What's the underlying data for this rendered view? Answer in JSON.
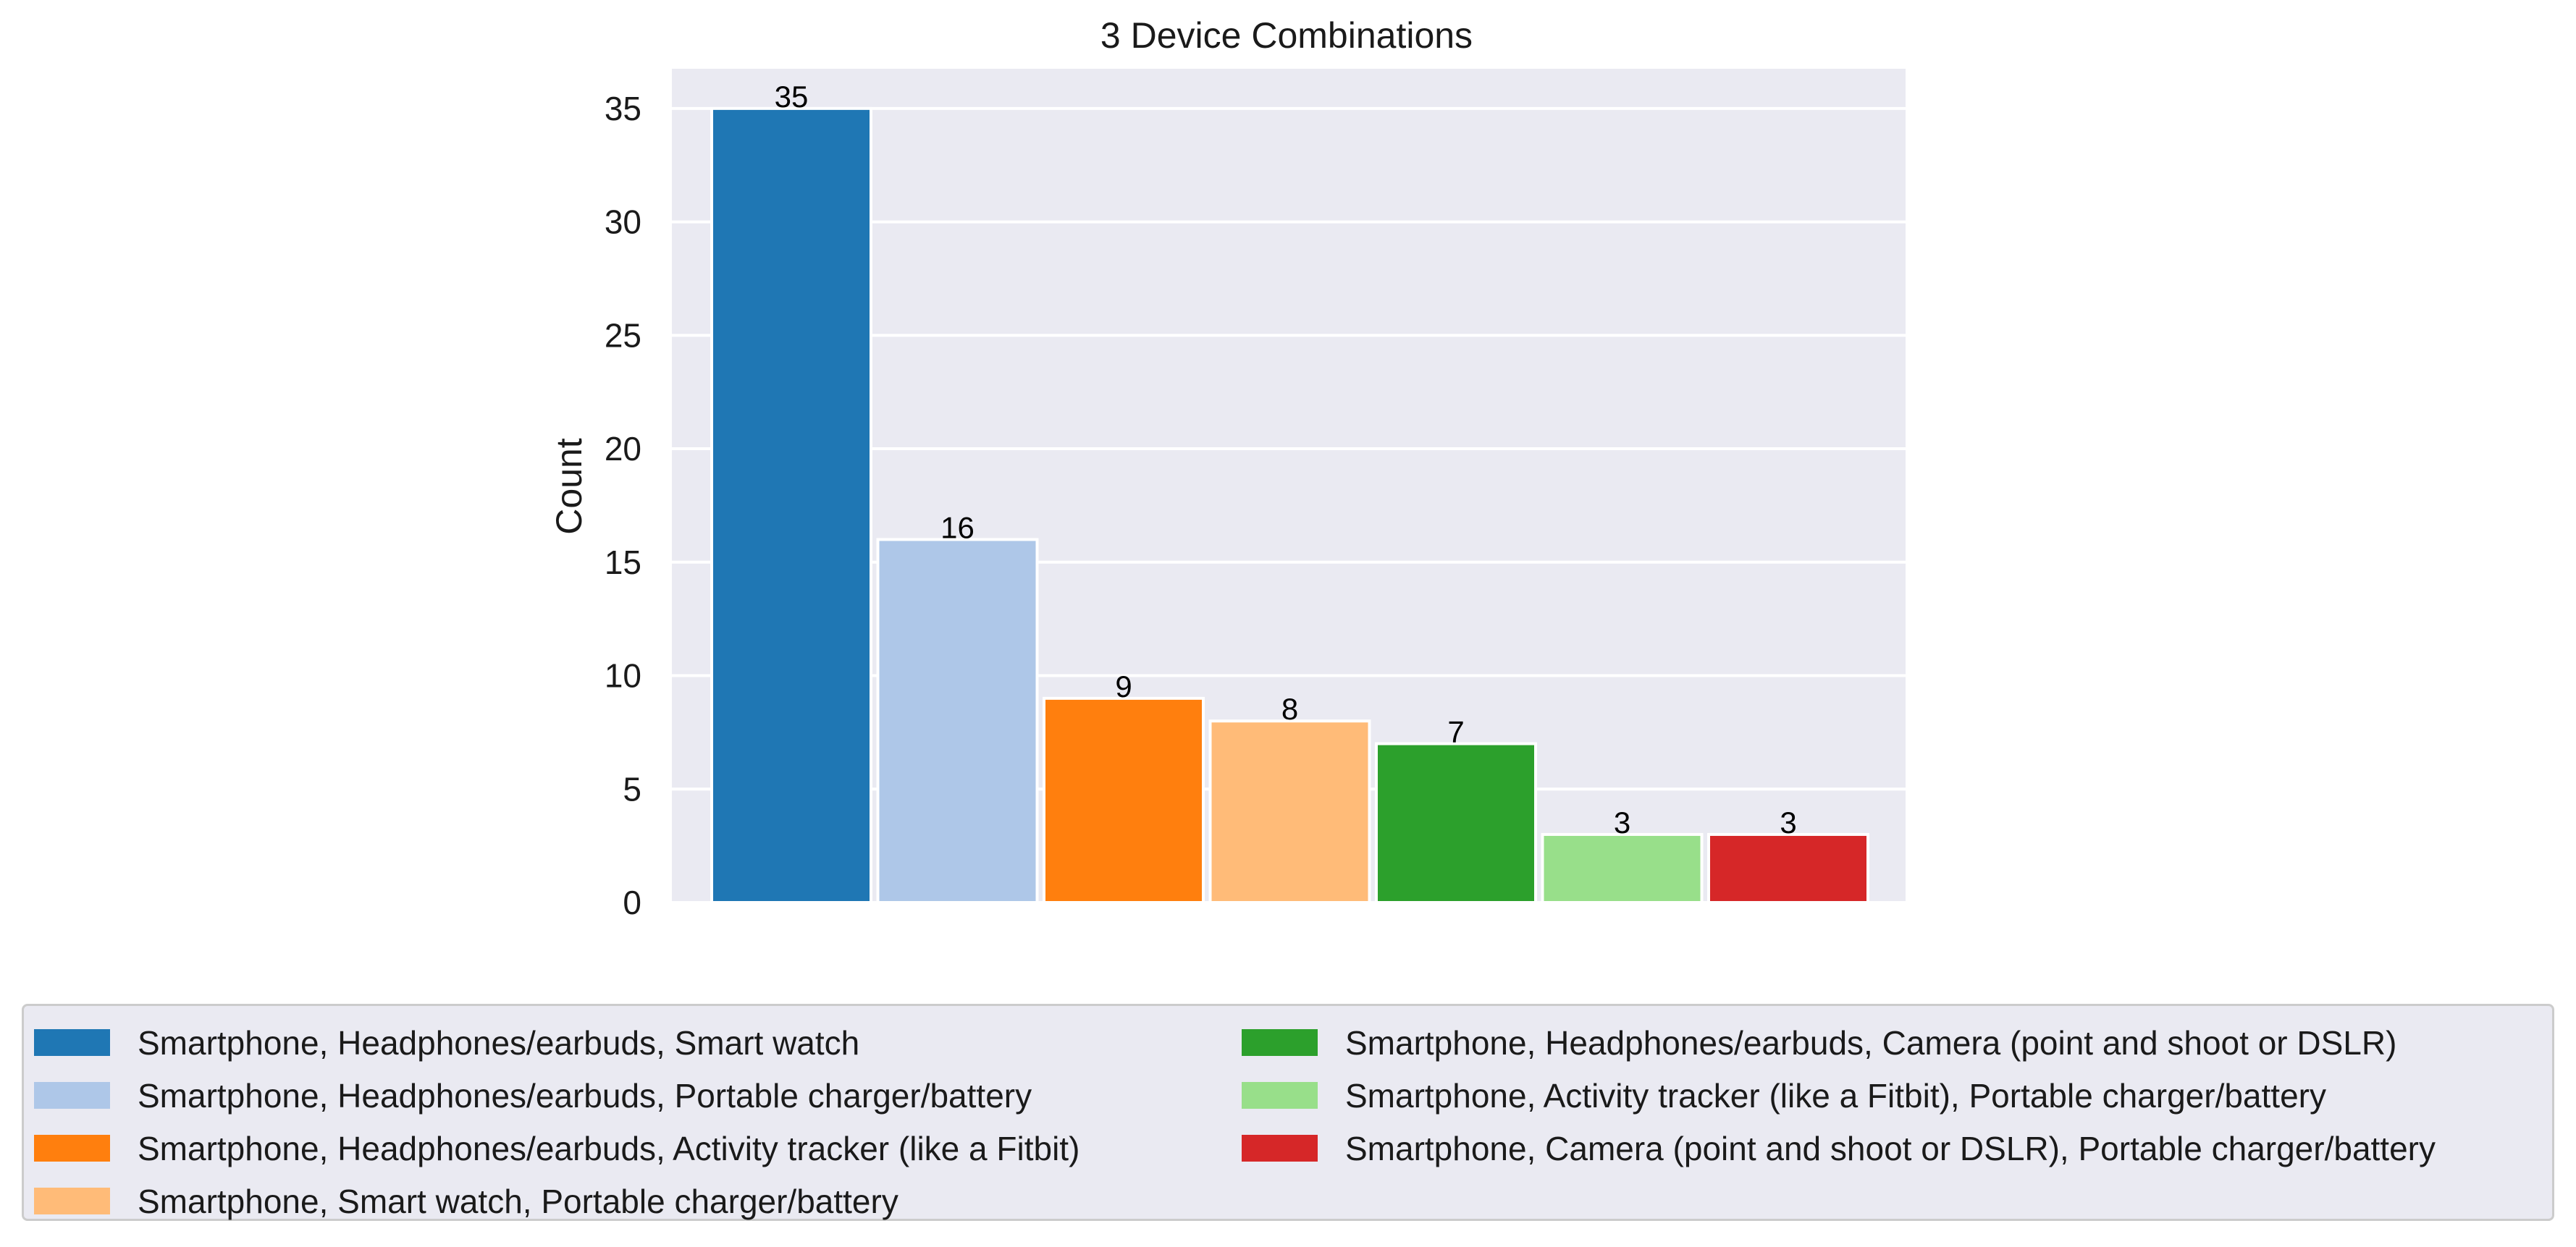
{
  "chart_data": {
    "type": "bar",
    "title": "3 Device Combinations",
    "xlabel": "",
    "ylabel": "Count",
    "ylim": [
      0,
      36.75
    ],
    "yticks": [
      0,
      5,
      10,
      15,
      20,
      25,
      30,
      35
    ],
    "grid": true,
    "legend_position": "bottom",
    "categories": [
      "Smartphone, Headphones/earbuds, Smart watch",
      "Smartphone, Headphones/earbuds, Portable charger/battery",
      "Smartphone, Headphones/earbuds, Activity tracker (like a Fitbit)",
      "Smartphone, Smart watch, Portable charger/battery",
      "Smartphone, Headphones/earbuds, Camera (point and shoot or DSLR)",
      "Smartphone, Activity tracker (like a Fitbit), Portable charger/battery",
      "Smartphone, Camera (point and shoot or DSLR), Portable charger/battery"
    ],
    "values": [
      35,
      16,
      9,
      8,
      7,
      3,
      3
    ],
    "data_labels": [
      "35",
      "16",
      "9",
      "8",
      "7",
      "3",
      "3"
    ],
    "colors": [
      "#1f77b4",
      "#aec7e8",
      "#ff7f0e",
      "#ffbb78",
      "#2ca02c",
      "#98df8a",
      "#d62728"
    ]
  }
}
